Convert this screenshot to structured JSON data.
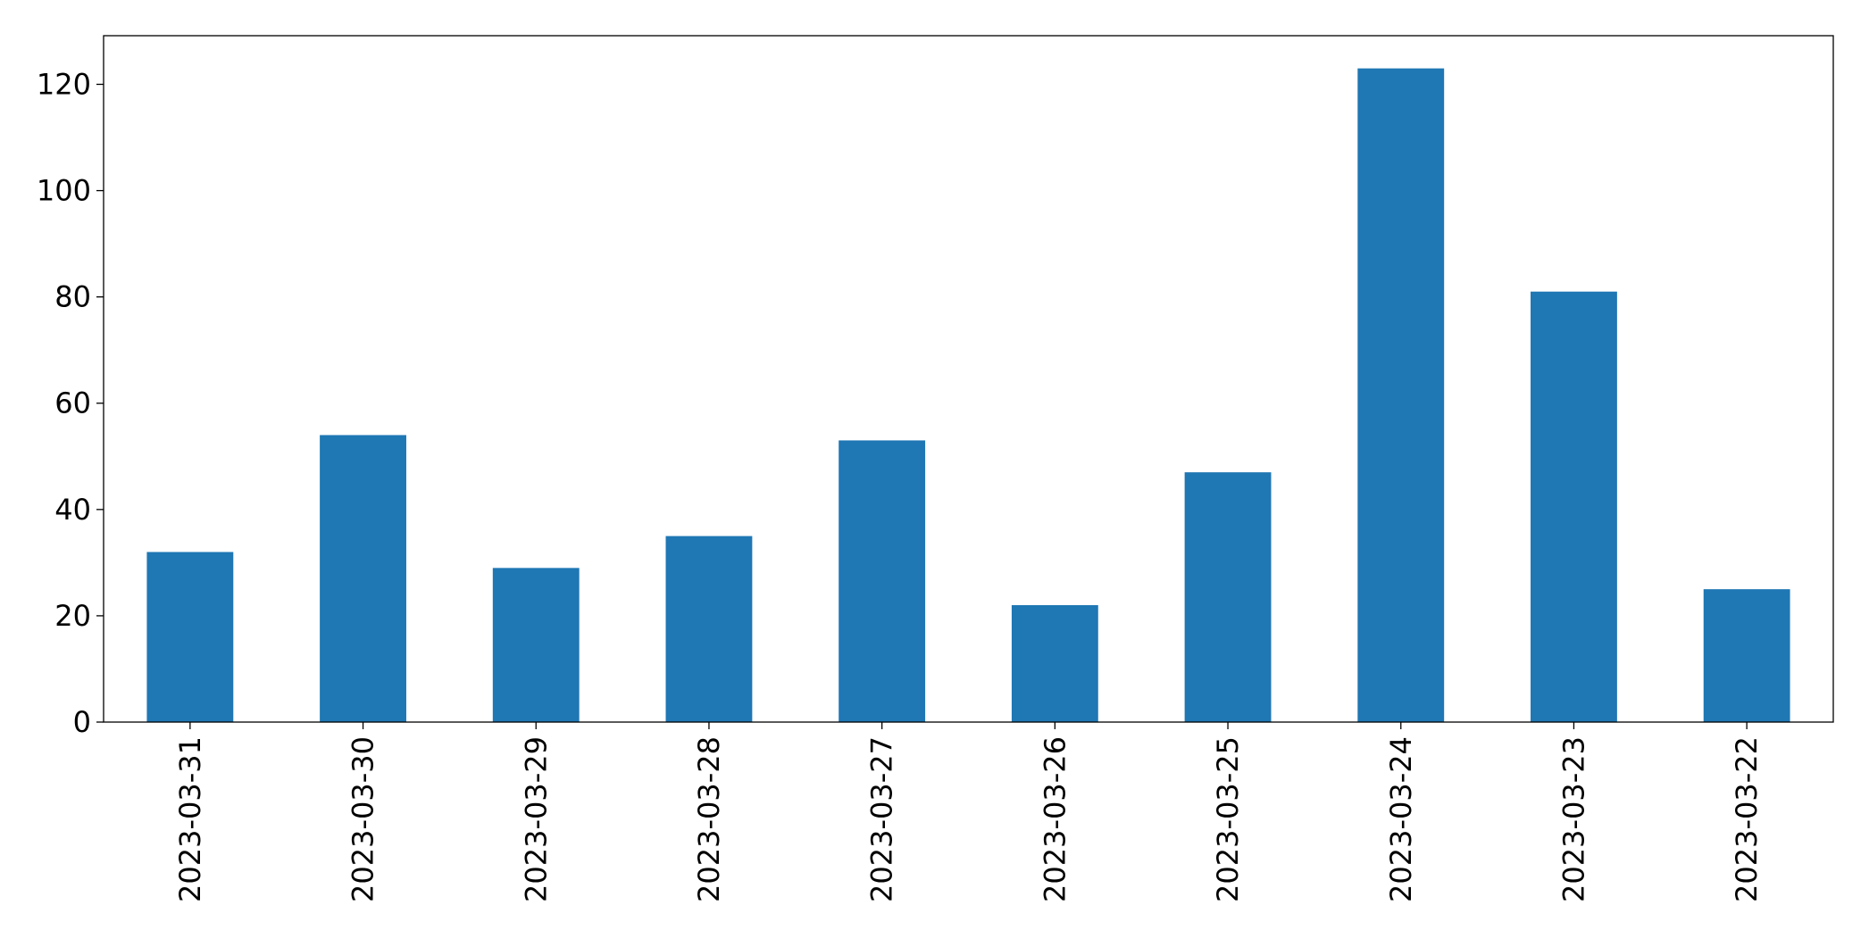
{
  "chart_data": {
    "type": "bar",
    "categories": [
      "2023-03-31",
      "2023-03-30",
      "2023-03-29",
      "2023-03-28",
      "2023-03-27",
      "2023-03-26",
      "2023-03-25",
      "2023-03-24",
      "2023-03-23",
      "2023-03-22"
    ],
    "values": [
      32,
      54,
      29,
      35,
      53,
      22,
      47,
      123,
      81,
      25
    ],
    "color": "#1f77b4",
    "ylim": [
      0,
      129.15
    ],
    "yticks": [
      0,
      20,
      40,
      60,
      80,
      100,
      120
    ],
    "grid": false
  }
}
